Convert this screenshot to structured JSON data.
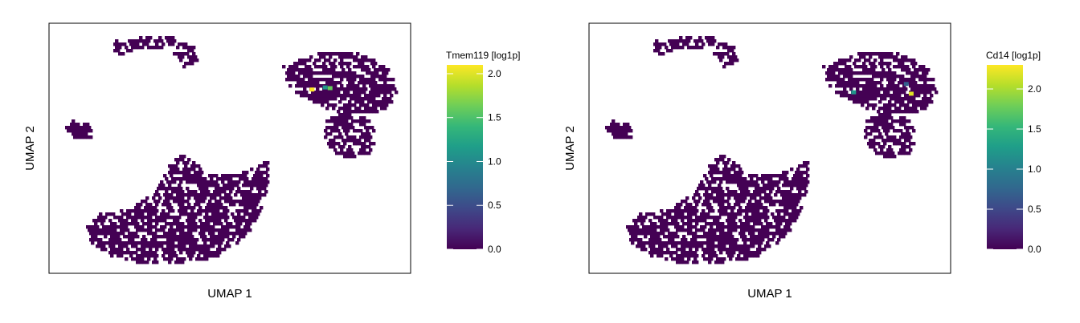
{
  "chart_data": [
    {
      "type": "scatter",
      "subtype": "hexbin-umap",
      "xlabel": "UMAP 1",
      "ylabel": "UMAP 2",
      "grid": false,
      "legend": {
        "title": "Tmem119 [log1p]",
        "placement": "right",
        "colormap": "viridis",
        "range": [
          0.0,
          2.1
        ],
        "ticks": [
          0.0,
          0.5,
          1.0,
          1.5,
          2.0
        ],
        "tick_labels": [
          "0.0",
          "0.5",
          "1.0",
          "1.5",
          "2.0"
        ]
      },
      "clusters": [
        {
          "name": "top-left arc",
          "value": 0.0
        },
        {
          "name": "small left blob",
          "value": 0.0
        },
        {
          "name": "large bottom-left cluster",
          "value": 0.0
        },
        {
          "name": "top-right cluster",
          "value": 0.0
        },
        {
          "name": "right middle blob",
          "value": 0.0
        }
      ],
      "highlighted_points": [
        {
          "x": 6.0,
          "y": 3.2,
          "value": 2.1
        },
        {
          "x": 6.8,
          "y": 3.35,
          "value": 1.1
        },
        {
          "x": 7.1,
          "y": 3.3,
          "value": 1.6
        }
      ]
    },
    {
      "type": "scatter",
      "subtype": "hexbin-umap",
      "xlabel": "UMAP 1",
      "ylabel": "UMAP 2",
      "grid": false,
      "legend": {
        "title": "Cd14 [log1p]",
        "placement": "right",
        "colormap": "viridis",
        "range": [
          0.0,
          2.3
        ],
        "ticks": [
          0.0,
          0.5,
          1.0,
          1.5,
          2.0
        ],
        "tick_labels": [
          "0.0",
          "0.5",
          "1.0",
          "1.5",
          "2.0"
        ]
      },
      "clusters": [
        {
          "name": "top-left arc",
          "value": 0.0
        },
        {
          "name": "small left blob",
          "value": 0.0
        },
        {
          "name": "large bottom-left cluster",
          "value": 0.0
        },
        {
          "name": "top-right cluster",
          "value": 0.0
        },
        {
          "name": "right middle blob",
          "value": 0.0
        }
      ],
      "highlighted_points": [
        {
          "x": 6.1,
          "y": 3.0,
          "value": 1.2
        },
        {
          "x": 9.6,
          "y": 2.9,
          "value": 2.2
        },
        {
          "x": 9.3,
          "y": 3.6,
          "value": 0.7
        }
      ]
    }
  ]
}
